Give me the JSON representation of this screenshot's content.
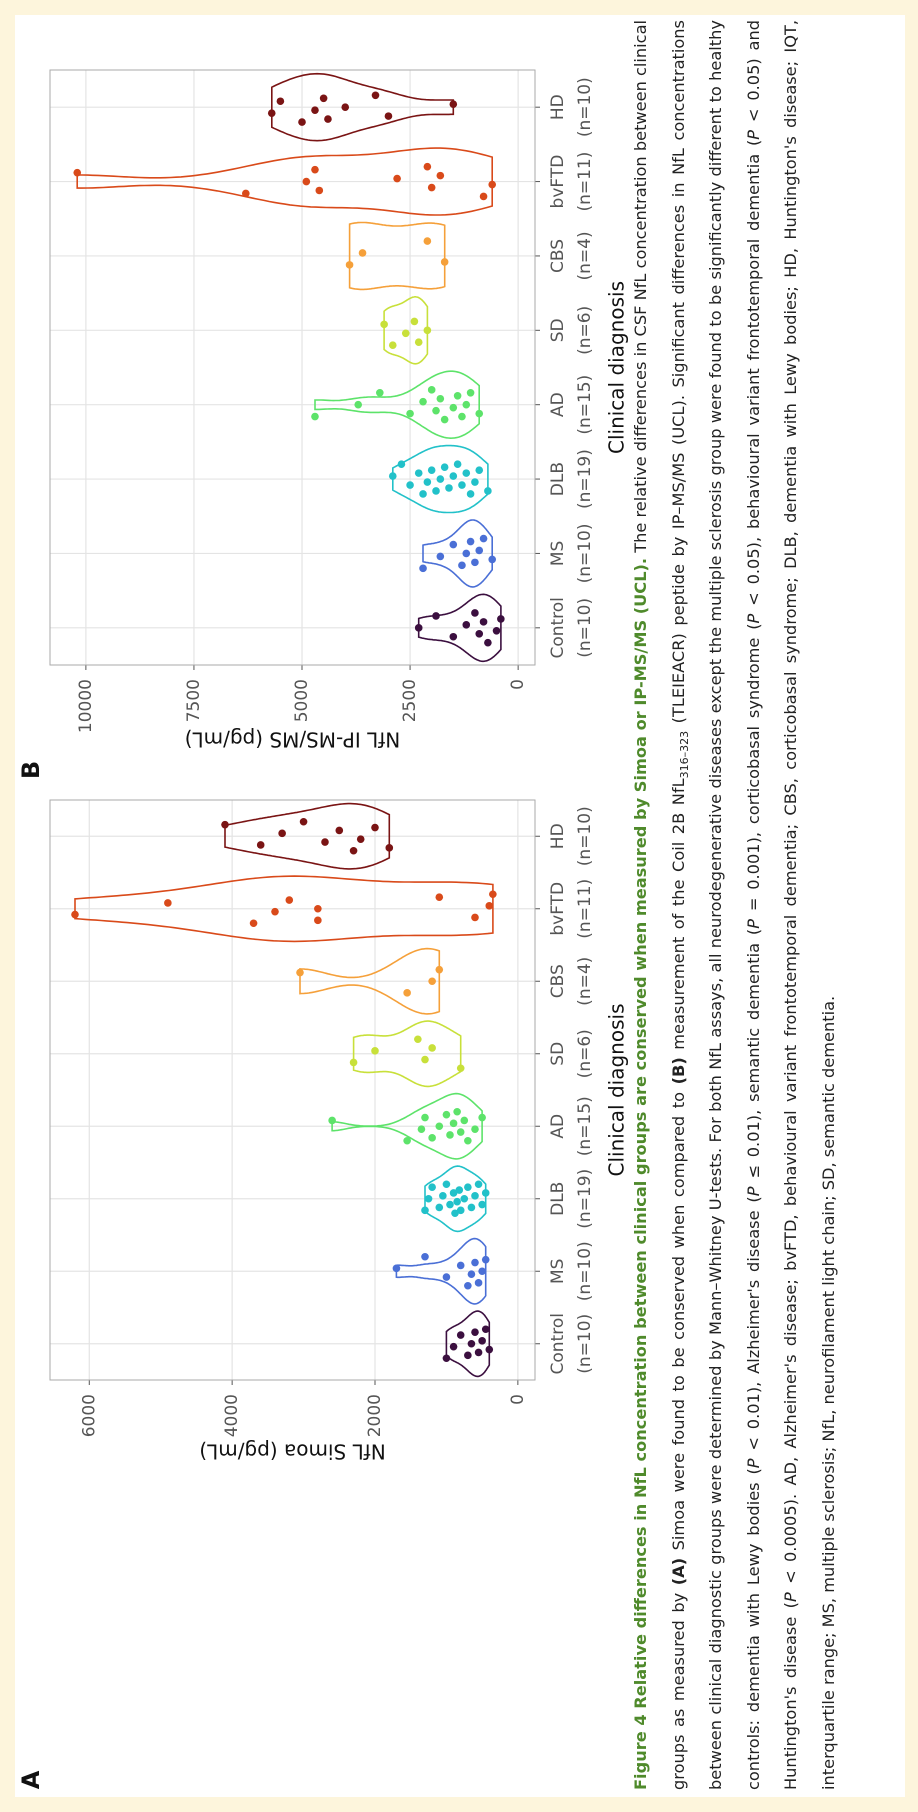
{
  "chart_data": [
    {
      "type": "violin",
      "panel_label": "A",
      "ylabel": "NfL Simoa (pg/mL)",
      "xlabel": "Clinical diagnosis",
      "categories": [
        "Control",
        "MS",
        "DLB",
        "AD",
        "SD",
        "CBS",
        "bvFTD",
        "HD"
      ],
      "category_n": [
        "(n=10)",
        "(n=10)",
        "(n=19)",
        "(n=15)",
        "(n=6)",
        "(n=4)",
        "(n=11)",
        "(n=10)"
      ],
      "ylim": [
        -240,
        6550
      ],
      "yticks": [
        0,
        2000,
        4000,
        6000
      ],
      "grid": true,
      "groups": [
        {
          "color": "#3b0f3f",
          "values": [
            1000,
            900,
            800,
            700,
            650,
            600,
            550,
            500,
            450,
            400
          ]
        },
        {
          "color": "#4a6fd6",
          "values": [
            1700,
            1300,
            1000,
            800,
            700,
            650,
            600,
            550,
            500,
            450
          ]
        },
        {
          "color": "#22c1c9",
          "values": [
            1300,
            1250,
            1200,
            1100,
            1050,
            1000,
            950,
            900,
            880,
            850,
            820,
            800,
            750,
            700,
            650,
            600,
            550,
            500,
            450
          ]
        },
        {
          "color": "#5de36a",
          "values": [
            2600,
            1550,
            1350,
            1300,
            1200,
            1100,
            1000,
            950,
            900,
            850,
            800,
            750,
            700,
            600,
            500
          ]
        },
        {
          "color": "#c8e03a",
          "values": [
            2300,
            2000,
            1400,
            1300,
            1200,
            800
          ]
        },
        {
          "color": "#f5a03a",
          "values": [
            3050,
            1550,
            1200,
            1100
          ]
        },
        {
          "color": "#d94a1a",
          "values": [
            6200,
            4900,
            3700,
            3400,
            3200,
            2800,
            2800,
            1100,
            600,
            400,
            350
          ]
        },
        {
          "color": "#7a1414",
          "values": [
            4100,
            3600,
            3300,
            3000,
            2700,
            2500,
            2300,
            2200,
            2000,
            1800
          ]
        }
      ]
    },
    {
      "type": "violin",
      "panel_label": "B",
      "ylabel": "NfL IP-MS/MS (pg/mL)",
      "xlabel": "Clinical diagnosis",
      "categories": [
        "Control",
        "MS",
        "DLB",
        "AD",
        "SD",
        "CBS",
        "bvFTD",
        "HD"
      ],
      "category_n": [
        "(n=10)",
        "(n=10)",
        "(n=19)",
        "(n=15)",
        "(n=6)",
        "(n=4)",
        "(n=11)",
        "(n=10)"
      ],
      "ylim": [
        -390,
        10830
      ],
      "yticks": [
        0,
        2500,
        5000,
        7500,
        10000
      ],
      "grid": true,
      "groups": [
        {
          "color": "#3b0f3f",
          "values": [
            2300,
            1900,
            1500,
            1200,
            1000,
            900,
            800,
            700,
            500,
            400
          ]
        },
        {
          "color": "#4a6fd6",
          "values": [
            2200,
            1800,
            1500,
            1300,
            1200,
            1100,
            1000,
            900,
            800,
            600
          ]
        },
        {
          "color": "#22c1c9",
          "values": [
            2900,
            2700,
            2500,
            2300,
            2200,
            2100,
            2000,
            1900,
            1800,
            1700,
            1600,
            1500,
            1400,
            1300,
            1200,
            1100,
            1000,
            900,
            700
          ]
        },
        {
          "color": "#5de36a",
          "values": [
            4700,
            3700,
            3200,
            2500,
            2200,
            2000,
            1900,
            1800,
            1700,
            1500,
            1400,
            1300,
            1200,
            1100,
            900
          ]
        },
        {
          "color": "#c8e03a",
          "values": [
            3100,
            2900,
            2600,
            2400,
            2300,
            2100
          ]
        },
        {
          "color": "#f5a03a",
          "values": [
            3900,
            3600,
            2100,
            1700
          ]
        },
        {
          "color": "#d94a1a",
          "values": [
            10200,
            6300,
            4900,
            4700,
            4600,
            2800,
            2100,
            2000,
            1800,
            800,
            600
          ]
        },
        {
          "color": "#7a1414",
          "values": [
            5700,
            5500,
            5000,
            4700,
            4500,
            4400,
            4000,
            3300,
            3000,
            1500
          ]
        }
      ]
    }
  ],
  "caption": {
    "title": "Figure 4 Relative differences in NfL concentration between clinical groups are conserved when measured by Simoa or IP-MS/MS (UCL).",
    "body": [
      {
        "text": " The relative differences in CSF NfL concentration between clinical groups as measured by "
      },
      {
        "text": "(A)",
        "format": "b"
      },
      {
        "text": " Simoa were found to be conserved when compared to "
      },
      {
        "text": "(B)",
        "format": "b"
      },
      {
        "text": " measurement of the Coil 2B NfL"
      },
      {
        "text": "316–323",
        "format": "sub"
      },
      {
        "text": " (TLEIEACR) peptide by IP–MS/MS (UCL). Significant differences in NfL concentrations between clinical diagnostic groups were determined by Mann–Whitney U-tests. For both NfL assays, all neurodegenerative diseases except the multiple sclerosis group were found to be significantly different to healthy controls: dementia with Lewy bodies ("
      },
      {
        "text": "P",
        "format": "i"
      },
      {
        "text": " < 0.01), Alzheimer's disease ("
      },
      {
        "text": "P",
        "format": "i"
      },
      {
        "text": " ≤ 0.01), semantic dementia ("
      },
      {
        "text": "P",
        "format": "i"
      },
      {
        "text": " = 0.001), corticobasal syndrome ("
      },
      {
        "text": "P",
        "format": "i"
      },
      {
        "text": " < 0.05), behavioural variant frontotemporal dementia ("
      },
      {
        "text": "P",
        "format": "i"
      },
      {
        "text": " < 0.05) and Huntington's disease ("
      },
      {
        "text": "P",
        "format": "i"
      },
      {
        "text": " < 0.0005). AD, Alzheimer's disease; bvFTD, behavioural variant frontotemporal dementia; CBS, corticobasal syndrome; DLB, dementia with Lewy bodies; HD, Huntington's disease; IQT, interquartile range; MS, multiple sclerosis; NfL, neurofilament light chain; SD, semantic dementia."
      }
    ]
  }
}
